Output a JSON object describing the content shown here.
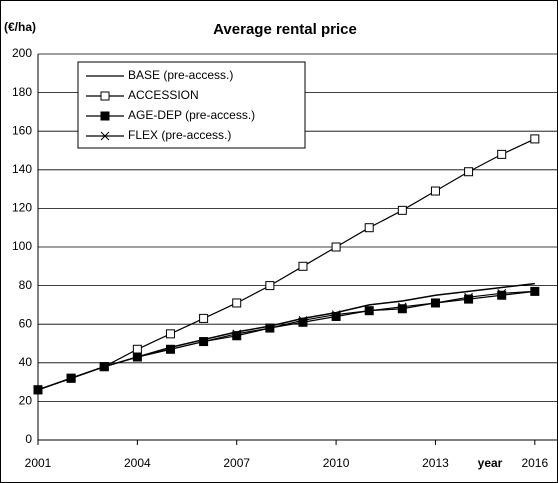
{
  "chart_data": {
    "type": "line",
    "title": "Average rental price",
    "y_label": "(€/ha)",
    "x_label": "year",
    "x": [
      2001,
      2002,
      2003,
      2004,
      2005,
      2006,
      2007,
      2008,
      2009,
      2010,
      2011,
      2012,
      2013,
      2014,
      2015,
      2016
    ],
    "series": [
      {
        "name": "BASE (pre-access.)",
        "color": "#000000",
        "marker": "none",
        "values": [
          26,
          32,
          38,
          43,
          48,
          52,
          56,
          59,
          63,
          66,
          70,
          72,
          75,
          77,
          79,
          81
        ]
      },
      {
        "name": "ACCESSION",
        "color": "#000000",
        "marker": "open-square",
        "values": [
          26,
          32,
          38,
          47,
          55,
          63,
          71,
          80,
          90,
          100,
          110,
          119,
          129,
          139,
          148,
          156
        ]
      },
      {
        "name": "AGE-DEP (pre-access.)",
        "color": "#000000",
        "marker": "filled-square",
        "values": [
          26,
          32,
          38,
          43,
          47,
          51,
          54,
          58,
          61,
          64,
          67,
          68,
          71,
          73,
          75,
          77
        ]
      },
      {
        "name": "FLEX (pre-access.)",
        "color": "#000000",
        "marker": "cross",
        "values": [
          26,
          32,
          38,
          43,
          47,
          51,
          55,
          58,
          62,
          65,
          67,
          69,
          71,
          74,
          76,
          77
        ]
      }
    ],
    "xlim": [
      2001,
      2016.7
    ],
    "xticks": [
      2001,
      2004,
      2007,
      2010,
      2013,
      2016
    ],
    "ylim": [
      0,
      200
    ],
    "yticks": [
      0,
      20,
      40,
      60,
      80,
      100,
      120,
      140,
      160,
      180,
      200
    ],
    "grid": true
  }
}
